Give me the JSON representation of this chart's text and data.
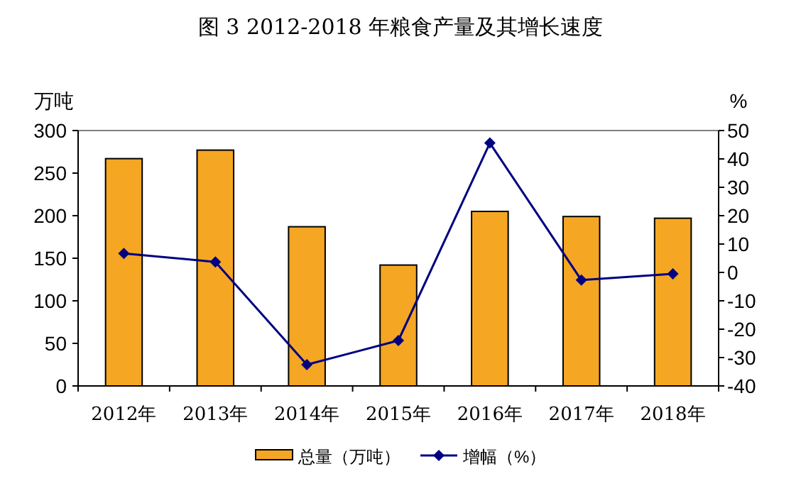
{
  "chart_data": {
    "type": "bar",
    "title": "图 3 2012-2018 年粮食产量及其增长速度",
    "ylabel": "万吨",
    "y2label": "%",
    "categories": [
      "2012年",
      "2013年",
      "2014年",
      "2015年",
      "2016年",
      "2017年",
      "2018年"
    ],
    "series": [
      {
        "name": "总量（万吨）",
        "color": "#f5a623",
        "values": [
          267,
          277,
          187,
          142,
          205,
          199,
          197
        ]
      },
      {
        "name": "增幅（%）",
        "type": "line",
        "color": "#000080",
        "axis": "y2",
        "marker": "diamond",
        "values": [
          6.7,
          3.7,
          -32.5,
          -24,
          45.6,
          -2.7,
          -0.5
        ]
      }
    ],
    "ylim": [
      0,
      300
    ],
    "yticks": [
      0,
      50,
      100,
      150,
      200,
      250,
      300
    ],
    "y2lim": [
      -40,
      50
    ],
    "y2ticks": [
      -40,
      -30,
      -20,
      -10,
      0,
      10,
      20,
      30,
      40,
      50
    ],
    "grid": false,
    "legend": "bottom"
  }
}
